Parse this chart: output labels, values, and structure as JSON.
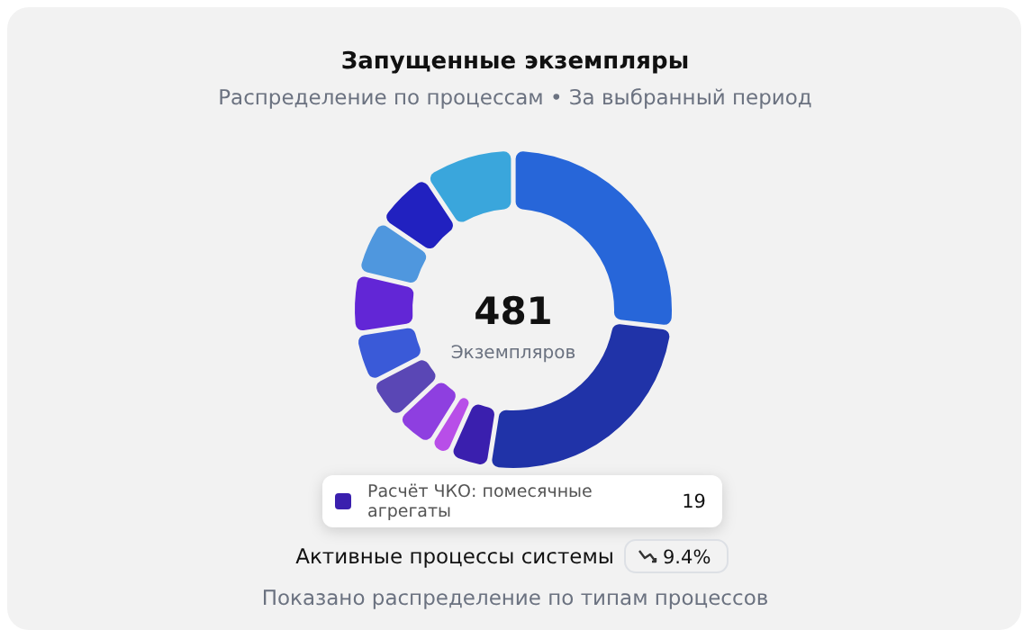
{
  "chart_data": {
    "type": "donut",
    "title": "Запущенные экземпляры",
    "subtitle": "Распределение по процессам • За выбранный период",
    "categories": [
      null,
      null,
      "Расчёт ЧКО: помесячные агрегаты",
      null,
      null,
      null,
      null,
      null,
      null,
      null,
      null
    ],
    "values": [
      133,
      127,
      19,
      9,
      19,
      20,
      24,
      29,
      27,
      29,
      45
    ],
    "colors": [
      "#2766d9",
      "#2033a8",
      "#3a1fae",
      "#b84ee8",
      "#8e3fe0",
      "#5a47b5",
      "#3a5ad8",
      "#6226d6",
      "#4f97de",
      "#2121c0",
      "#3aa6dc"
    ],
    "value_labels": [
      null,
      null,
      "19",
      null,
      null,
      null,
      null,
      null,
      null,
      null,
      null
    ],
    "annotations": [
      "481",
      "Экземпляров",
      "Активные процессы системы",
      "9.4%",
      "Показано распределение по типам процессов"
    ],
    "legend": "bottom"
  }
}
